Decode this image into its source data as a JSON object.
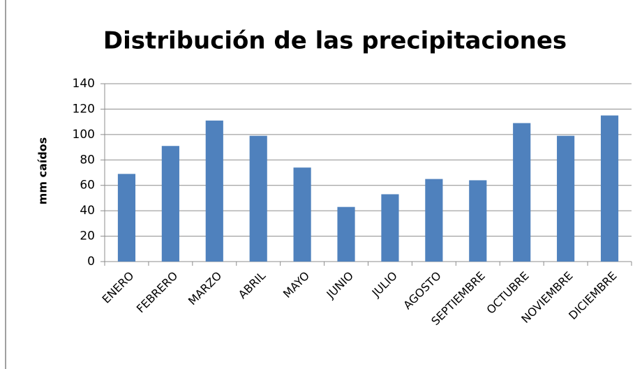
{
  "chart_data": {
    "type": "bar",
    "title": "Distribución de las precipitaciones",
    "y_label": "mm caídos",
    "categories": [
      "ENERO",
      "FEBRERO",
      "MARZO",
      "ABRIL",
      "MAYO",
      "JUNIO",
      "JULIO",
      "AGOSTO",
      "SEPTIEMBRE",
      "OCTUBRE",
      "NOVIEMBRE",
      "DICIEMBRE"
    ],
    "values": [
      69,
      91,
      111,
      99,
      74,
      43,
      53,
      65,
      64,
      109,
      99,
      115
    ],
    "color": "#4f81bd",
    "ylim": [
      0,
      140
    ],
    "yticks": [
      0,
      20,
      40,
      60,
      80,
      100,
      120,
      140
    ],
    "grid": true
  }
}
